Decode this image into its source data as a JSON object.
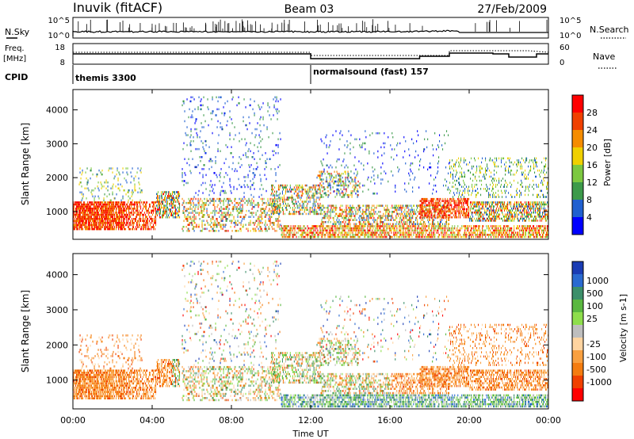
{
  "header": {
    "station": "Inuvik (fitACF)",
    "beam": "Beam 03",
    "date": "27/Feb/2009"
  },
  "top_panels": {
    "nsky_label": "N.Sky",
    "nsky_ticks": [
      "10^5",
      "10^0"
    ],
    "nsearch_label": "N.Search",
    "nsearch_ticks": [
      "10^5",
      "10^0"
    ],
    "freq_label": "Freq.",
    "freq_unit": "[MHz]",
    "freq_ticks": [
      "18",
      "8"
    ],
    "nave_label": "Nave",
    "nave_ticks": [
      "60",
      "0"
    ],
    "cpid_label": "CPID",
    "cpid_segments": [
      {
        "start_hour": 0,
        "label": "themis 3300"
      },
      {
        "start_hour": 12,
        "label": "normalsound (fast) 157"
      }
    ]
  },
  "chart_data": [
    {
      "type": "heatmap",
      "name": "Power",
      "ylabel": "Slant Range [km]",
      "ylim": [
        180,
        4600
      ],
      "yticks": [
        1000,
        2000,
        3000,
        4000
      ],
      "xlim_hours": [
        0,
        24
      ],
      "colorbar": {
        "label": "Power [dB]",
        "ticks": [
          "4",
          "8",
          "12",
          "16",
          "20",
          "24",
          "28"
        ],
        "colors": [
          "#0000ff",
          "#2060d0",
          "#3c9a4a",
          "#7cc840",
          "#f0d000",
          "#f58c00",
          "#f04000",
          "#ff0000"
        ]
      }
    },
    {
      "type": "heatmap",
      "name": "Velocity",
      "ylabel": "Slant Range [km]",
      "ylim": [
        180,
        4600
      ],
      "yticks": [
        1000,
        2000,
        3000,
        4000
      ],
      "xlim_hours": [
        0,
        24
      ],
      "colorbar": {
        "label": "Velocity [m s-1]",
        "ticks": [
          "1000",
          "500",
          "100",
          "25",
          "-25",
          "-100",
          "-500",
          "-1000"
        ],
        "colors": [
          "#1a3cb4",
          "#2a6ad0",
          "#3c8f6a",
          "#5ab840",
          "#8ede4c",
          "#bebebe",
          "#ffd4a0",
          "#f9a040",
          "#f47c10",
          "#f04000",
          "#ff0000"
        ]
      }
    }
  ],
  "time_axis": {
    "label": "Time UT",
    "ticks": [
      "00:00",
      "04:00",
      "08:00",
      "12:00",
      "16:00",
      "20:00",
      "00:00"
    ]
  }
}
